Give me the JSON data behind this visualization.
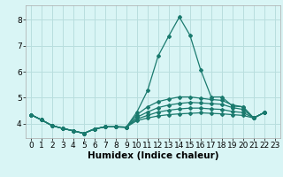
{
  "title": "",
  "xlabel": "Humidex (Indice chaleur)",
  "ylabel": "",
  "bg_color": "#d9f5f5",
  "grid_color": "#b8dede",
  "line_color": "#1a7a6e",
  "ylim": [
    3.45,
    8.55
  ],
  "xlim": [
    -0.5,
    23.5
  ],
  "yticks": [
    4,
    5,
    6,
    7,
    8
  ],
  "xticks": [
    0,
    1,
    2,
    3,
    4,
    5,
    6,
    7,
    8,
    9,
    10,
    11,
    12,
    13,
    14,
    15,
    16,
    17,
    18,
    19,
    20,
    21,
    22,
    23
  ],
  "lines": [
    [
      4.35,
      4.15,
      3.93,
      3.82,
      3.73,
      3.63,
      3.8,
      3.88,
      3.88,
      3.87,
      4.45,
      5.27,
      6.6,
      7.37,
      8.1,
      7.4,
      6.08,
      5.03,
      5.03,
      4.68,
      4.65,
      4.22,
      4.43
    ],
    [
      4.35,
      4.15,
      3.93,
      3.82,
      3.73,
      3.63,
      3.8,
      3.88,
      3.88,
      3.87,
      4.35,
      4.65,
      4.85,
      4.95,
      5.03,
      5.03,
      4.98,
      4.93,
      4.9,
      4.72,
      4.65,
      4.22,
      4.43
    ],
    [
      4.35,
      4.15,
      3.93,
      3.82,
      3.73,
      3.63,
      3.8,
      3.88,
      3.88,
      3.87,
      4.25,
      4.45,
      4.62,
      4.72,
      4.78,
      4.82,
      4.8,
      4.77,
      4.75,
      4.62,
      4.55,
      4.22,
      4.43
    ],
    [
      4.35,
      4.15,
      3.93,
      3.82,
      3.73,
      3.63,
      3.8,
      3.88,
      3.88,
      3.87,
      4.18,
      4.32,
      4.45,
      4.52,
      4.57,
      4.6,
      4.6,
      4.57,
      4.55,
      4.47,
      4.43,
      4.22,
      4.43
    ],
    [
      4.35,
      4.15,
      3.93,
      3.82,
      3.73,
      3.63,
      3.8,
      3.88,
      3.88,
      3.87,
      4.12,
      4.22,
      4.3,
      4.35,
      4.38,
      4.4,
      4.42,
      4.4,
      4.38,
      4.35,
      4.32,
      4.22,
      4.43
    ]
  ],
  "xlabel_fontsize": 7.5,
  "tick_fontsize": 6.5,
  "marker": "D",
  "markersize": 2.0,
  "linewidth": 0.9
}
